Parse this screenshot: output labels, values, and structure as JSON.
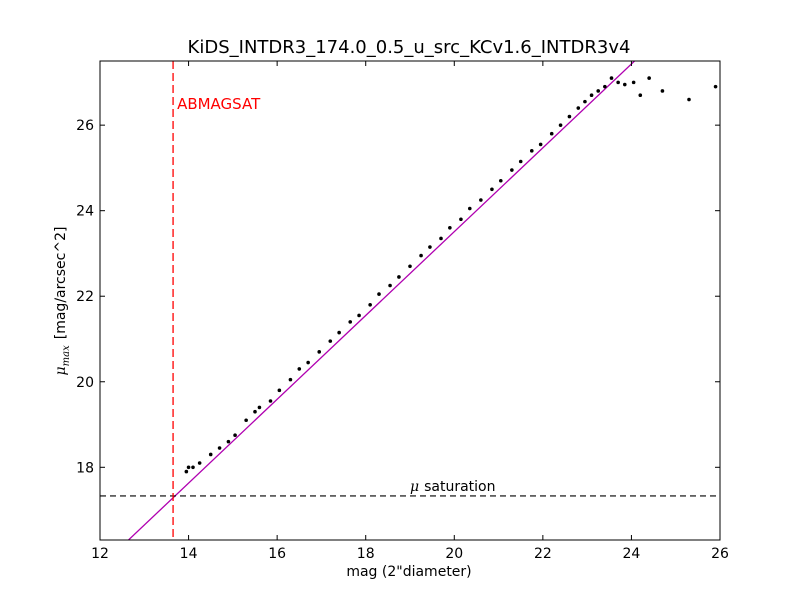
{
  "chart_data": {
    "type": "scatter",
    "title": "KiDS_INTDR3_174.0_0.5_u_src_KCv1.6_INTDR3v4",
    "xlabel": "mag (2\"diameter)",
    "ylabel_symbol": "μ",
    "ylabel_subscript": "max",
    "ylabel_units": "[mag/arcsec^2]",
    "xlim": [
      12,
      26
    ],
    "ylim": [
      16.3,
      27.5
    ],
    "xticks": [
      12,
      14,
      16,
      18,
      20,
      22,
      24,
      26
    ],
    "yticks": [
      18,
      20,
      22,
      24,
      26
    ],
    "grid": false,
    "colors": {
      "points": "#000000",
      "fit_line": "#b000b0",
      "abmagsat_line": "#ff0000",
      "saturation_line": "#000000",
      "frame": "#000000"
    },
    "fit_line": {
      "slope": 0.98,
      "intercept": 3.91
    },
    "abmagsat": {
      "x": 13.65,
      "label": "ABMAGSAT"
    },
    "mu_saturation": {
      "y": 17.33,
      "label_symbol": "μ",
      "label_text": "saturation"
    },
    "series": [
      {
        "x": [
          13.95,
          14.0,
          14.1,
          14.25,
          14.5,
          14.7,
          14.9,
          15.05,
          15.3,
          15.5,
          15.6,
          15.85,
          16.05,
          16.3,
          16.5,
          16.7,
          16.95,
          17.2,
          17.4,
          17.65,
          17.85,
          18.1,
          18.3,
          18.55,
          18.75,
          19.0,
          19.25,
          19.45,
          19.7,
          19.9,
          20.15,
          20.35,
          20.6,
          20.85,
          21.05,
          21.3,
          21.5,
          21.75,
          21.95,
          22.2,
          22.4,
          22.6,
          22.8,
          22.95,
          23.1,
          23.25,
          23.4,
          23.55,
          23.7,
          23.85,
          24.05,
          24.2,
          24.4,
          24.7,
          25.3,
          25.9
        ],
        "y": [
          17.9,
          18.0,
          18.0,
          18.1,
          18.3,
          18.45,
          18.6,
          18.75,
          19.1,
          19.3,
          19.4,
          19.55,
          19.8,
          20.05,
          20.3,
          20.45,
          20.7,
          20.95,
          21.15,
          21.4,
          21.55,
          21.8,
          22.05,
          22.25,
          22.45,
          22.7,
          22.95,
          23.15,
          23.35,
          23.6,
          23.8,
          24.05,
          24.25,
          24.5,
          24.7,
          24.95,
          25.15,
          25.4,
          25.55,
          25.8,
          26.0,
          26.2,
          26.4,
          26.55,
          26.7,
          26.8,
          26.9,
          27.1,
          27.0,
          26.95,
          27.0,
          26.7,
          27.1,
          26.8,
          26.6,
          26.9
        ]
      }
    ]
  }
}
